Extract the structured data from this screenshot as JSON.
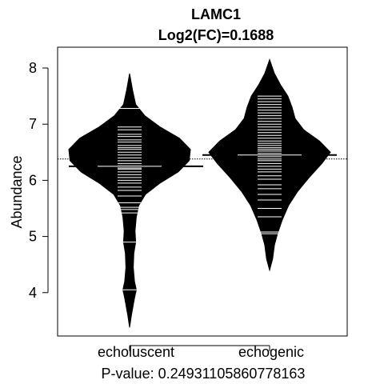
{
  "chart_data": {
    "type": "beanplot",
    "title_line1": "LAMC1",
    "title_line2": "Log2(FC)=0.1688",
    "ylabel": "Abundance",
    "pvalue_text": "P-value: 0.24931105860778163",
    "ylim": [
      3.2,
      8.35
    ],
    "yticks": [
      4,
      5,
      6,
      7,
      8
    ],
    "overall_line": 6.38,
    "categories": [
      "echoluscent",
      "echogenic"
    ],
    "groups": [
      {
        "name": "echoluscent",
        "mean": 6.25,
        "density": [
          [
            3.38,
            0.0
          ],
          [
            3.6,
            0.03
          ],
          [
            3.9,
            0.08
          ],
          [
            4.05,
            0.11
          ],
          [
            4.2,
            0.08
          ],
          [
            4.45,
            0.06
          ],
          [
            4.7,
            0.07
          ],
          [
            4.9,
            0.1
          ],
          [
            5.1,
            0.09
          ],
          [
            5.35,
            0.11
          ],
          [
            5.55,
            0.15
          ],
          [
            5.75,
            0.26
          ],
          [
            5.95,
            0.5
          ],
          [
            6.15,
            0.8
          ],
          [
            6.35,
            0.98
          ],
          [
            6.55,
            1.0
          ],
          [
            6.75,
            0.82
          ],
          [
            6.95,
            0.5
          ],
          [
            7.15,
            0.25
          ],
          [
            7.35,
            0.1
          ],
          [
            7.6,
            0.05
          ],
          [
            7.9,
            0.0
          ]
        ],
        "points": [
          4.05,
          4.9,
          5.42,
          5.48,
          5.52,
          5.6,
          5.72,
          5.82,
          5.88,
          5.95,
          6.0,
          6.05,
          6.1,
          6.15,
          6.2,
          6.22,
          6.26,
          6.3,
          6.35,
          6.4,
          6.45,
          6.5,
          6.55,
          6.58,
          6.62,
          6.68,
          6.72,
          6.78,
          6.82,
          6.9,
          6.95,
          7.28
        ]
      },
      {
        "name": "echogenic",
        "mean": 6.45,
        "density": [
          [
            4.4,
            0.0
          ],
          [
            4.6,
            0.05
          ],
          [
            4.85,
            0.08
          ],
          [
            5.05,
            0.13
          ],
          [
            5.3,
            0.21
          ],
          [
            5.55,
            0.31
          ],
          [
            5.8,
            0.46
          ],
          [
            6.05,
            0.65
          ],
          [
            6.3,
            0.86
          ],
          [
            6.5,
            1.0
          ],
          [
            6.7,
            0.82
          ],
          [
            6.9,
            0.56
          ],
          [
            7.1,
            0.42
          ],
          [
            7.3,
            0.37
          ],
          [
            7.5,
            0.3
          ],
          [
            7.7,
            0.18
          ],
          [
            7.9,
            0.08
          ],
          [
            8.15,
            0.0
          ]
        ],
        "points": [
          5.05,
          5.08,
          5.35,
          5.5,
          5.65,
          5.75,
          5.85,
          5.92,
          6.02,
          6.08,
          6.15,
          6.2,
          6.25,
          6.3,
          6.35,
          6.38,
          6.42,
          6.45,
          6.48,
          6.52,
          6.55,
          6.58,
          6.62,
          6.66,
          6.7,
          6.75,
          6.8,
          6.85,
          6.9,
          6.95,
          7.0,
          7.05,
          7.1,
          7.15,
          7.2,
          7.25,
          7.3,
          7.35,
          7.4,
          7.45,
          7.5
        ]
      }
    ]
  }
}
